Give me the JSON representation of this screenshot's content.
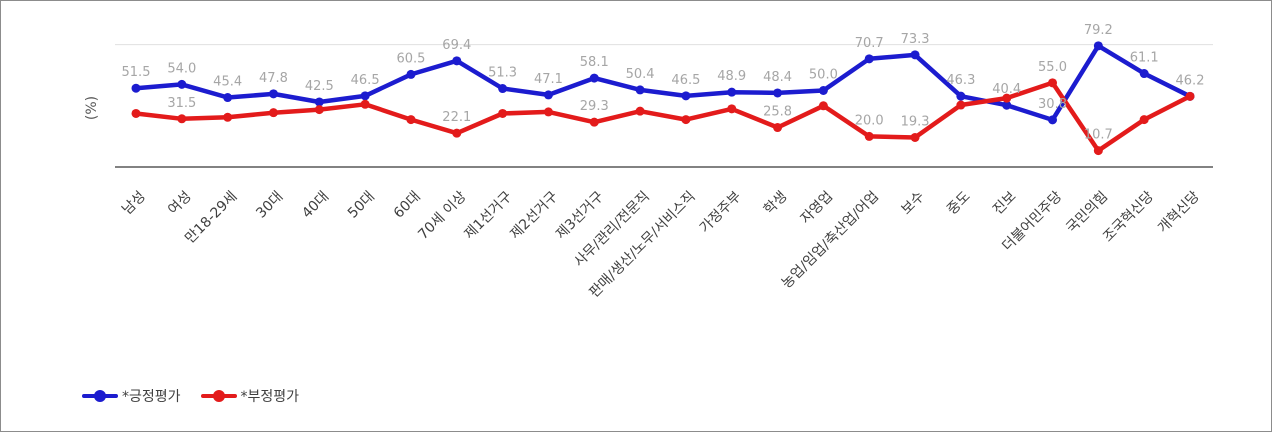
{
  "chart_data": {
    "type": "line",
    "title": "",
    "xlabel": "",
    "ylabel": "(%)",
    "ylim": [
      0,
      100
    ],
    "grid": true,
    "legend_position": "bottom-left",
    "categories": [
      "남성",
      "여성",
      "만18-29세",
      "30대",
      "40대",
      "50대",
      "60대",
      "70세 이상",
      "제1선거구",
      "제2선거구",
      "제3선거구",
      "사무/관리/전문직",
      "판매/생산/노무/서비스직",
      "가정주부",
      "학생",
      "자영업",
      "농업/임업/축산업/어업",
      "보수",
      "중도",
      "진보",
      "더불어민주당",
      "국민의힘",
      "조국혁신당",
      "개혁신당"
    ],
    "series": [
      {
        "name": "*긍정평가",
        "color": "#1c1ccf",
        "values": [
          51.5,
          54.0,
          45.4,
          47.8,
          42.5,
          46.5,
          60.5,
          69.4,
          51.3,
          47.1,
          58.1,
          50.4,
          46.5,
          48.9,
          48.4,
          50.0,
          70.7,
          73.3,
          46.3,
          40.4,
          30.8,
          79.2,
          61.1,
          46.2
        ]
      },
      {
        "name": "*부정평가",
        "color": "#e31b1b",
        "values": [
          35.0,
          31.5,
          32.5,
          35.5,
          37.5,
          41.0,
          31.0,
          22.1,
          35.0,
          36.0,
          29.3,
          36.5,
          31.0,
          38.0,
          25.8,
          40.0,
          20.0,
          19.3,
          40.5,
          45.0,
          55.0,
          10.7,
          31.0,
          46.2
        ]
      }
    ],
    "point_labels": [
      [
        "51.5",
        "54.0",
        "45.4",
        "47.8",
        "42.5",
        "46.5",
        "60.5",
        "69.4",
        "51.3",
        "47.1",
        "58.1",
        "50.4",
        "46.5",
        "48.9",
        "48.4",
        "50.0",
        "70.7",
        "73.3",
        "46.3",
        "40.4",
        "30.8",
        "79.2",
        "61.1",
        "46.2"
      ],
      [
        "",
        "31.5",
        "",
        "",
        "",
        "",
        "",
        "22.1",
        "",
        "",
        "29.3",
        "",
        "",
        "",
        "25.8",
        "",
        "20.0",
        "19.3",
        "",
        "",
        "55.0",
        "10.7",
        "",
        ""
      ]
    ]
  }
}
